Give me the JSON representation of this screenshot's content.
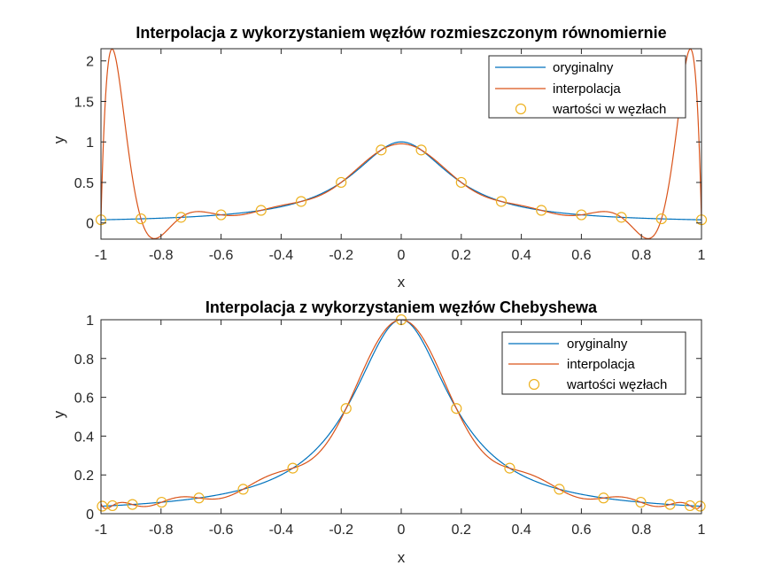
{
  "chart_data": [
    {
      "type": "line",
      "title": "Interpolacja z wykorzystaniem węzłów rozmieszczonym równomiernie",
      "xlabel": "x",
      "ylabel": "y",
      "xlim": [
        -1,
        1
      ],
      "ylim": [
        -0.2,
        2.15
      ],
      "xticks": [
        -1,
        -0.8,
        -0.6,
        -0.4,
        -0.2,
        0,
        0.2,
        0.4,
        0.6,
        0.8,
        1
      ],
      "xtick_labels": [
        "-1",
        "-0.8",
        "-0.6",
        "-0.4",
        "-0.2",
        "0",
        "0.2",
        "0.4",
        "0.6",
        "0.8",
        "1"
      ],
      "yticks": [
        0,
        0.5,
        1,
        1.5,
        2
      ],
      "ytick_labels": [
        "0",
        "0.5",
        "1",
        "1.5",
        "2"
      ],
      "legend_position": "top-right",
      "grid": false,
      "series": [
        {
          "name": "oryginalny",
          "color": "#0072BD",
          "kind": "line",
          "function": "runge"
        },
        {
          "name": "interpolacja",
          "color": "#D95319",
          "kind": "line",
          "function": "lagrange_nodes"
        },
        {
          "name": "wartości w węzłach",
          "color": "#EDB120",
          "kind": "marker-circle",
          "x": [
            -1,
            -0.8667,
            -0.7333,
            -0.6,
            -0.4667,
            -0.3333,
            -0.2,
            -0.0667,
            0.0667,
            0.2,
            0.3333,
            0.4667,
            0.6,
            0.7333,
            0.8667,
            1
          ],
          "y": [
            0.0385,
            0.0506,
            0.0692,
            0.1,
            0.1552,
            0.2647,
            0.5,
            0.9,
            0.9,
            0.5,
            0.2647,
            0.1552,
            0.1,
            0.0692,
            0.0506,
            0.0385
          ]
        }
      ]
    },
    {
      "type": "line",
      "title": "Interpolacja z wykorzystaniem węzłów Chebyshewa",
      "xlabel": "x",
      "ylabel": "y",
      "xlim": [
        -1,
        1
      ],
      "ylim": [
        0,
        1
      ],
      "xticks": [
        -1,
        -0.8,
        -0.6,
        -0.4,
        -0.2,
        0,
        0.2,
        0.4,
        0.6,
        0.8,
        1
      ],
      "xtick_labels": [
        "-1",
        "-0.8",
        "-0.6",
        "-0.4",
        "-0.2",
        "0",
        "0.2",
        "0.4",
        "0.6",
        "0.8",
        "1"
      ],
      "yticks": [
        0,
        0.2,
        0.4,
        0.6,
        0.8,
        1
      ],
      "ytick_labels": [
        "0",
        "0.2",
        "0.4",
        "0.6",
        "0.8",
        "1"
      ],
      "legend_position": "top-right",
      "grid": false,
      "series": [
        {
          "name": "oryginalny",
          "color": "#0072BD",
          "kind": "line",
          "function": "runge"
        },
        {
          "name": "interpolacja",
          "color": "#D95319",
          "kind": "line",
          "function": "lagrange_nodes"
        },
        {
          "name": "wartości węzłach",
          "color": "#EDB120",
          "kind": "marker-circle",
          "x": [
            -0.9957,
            -0.9618,
            -0.8952,
            -0.798,
            -0.6737,
            -0.5264,
            -0.3612,
            -0.1837,
            0.0,
            0.1837,
            0.3612,
            0.5264,
            0.6737,
            0.798,
            0.8952,
            0.9618,
            0.9957
          ],
          "y": [
            0.0388,
            0.0414,
            0.0475,
            0.0591,
            0.081,
            0.1261,
            0.2346,
            0.5424,
            1.0,
            0.5424,
            0.2346,
            0.1261,
            0.081,
            0.0591,
            0.0475,
            0.0414,
            0.0388
          ]
        }
      ]
    }
  ]
}
